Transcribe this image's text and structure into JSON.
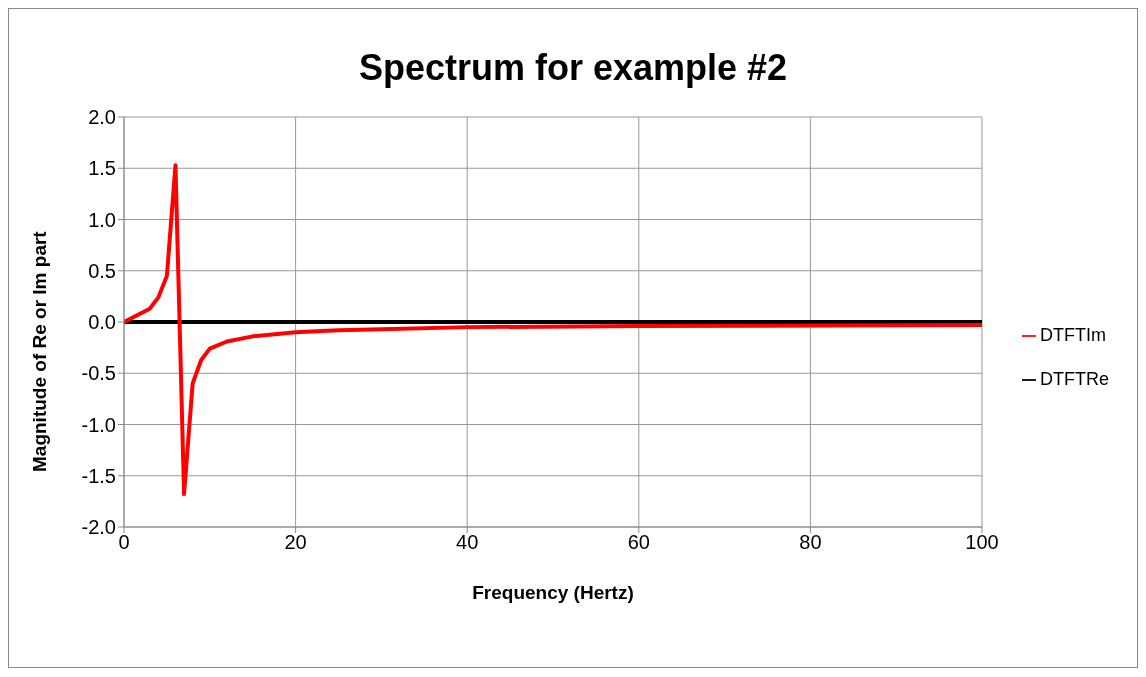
{
  "chart_data": {
    "type": "line",
    "title": "Spectrum for example #2",
    "xlabel": "Frequency (Hertz)",
    "ylabel": "Magnitude of Re or Im part",
    "xlim": [
      0,
      100
    ],
    "xticks": [
      0,
      20,
      40,
      60,
      80,
      100
    ],
    "ylim": [
      -2,
      2
    ],
    "yticks": [
      {
        "value": -2,
        "label": "-2.0"
      },
      {
        "value": -1.5,
        "label": "-1.5"
      },
      {
        "value": -1,
        "label": "-1.0"
      },
      {
        "value": -0.5,
        "label": "-0.5"
      },
      {
        "value": 0,
        "label": "0.0"
      },
      {
        "value": 0.5,
        "label": "0.5"
      },
      {
        "value": 1,
        "label": "1.0"
      },
      {
        "value": 1.5,
        "label": "1.5"
      },
      {
        "value": 2,
        "label": "2.0"
      }
    ],
    "grid": true,
    "legend": "right",
    "marker": "none",
    "line_style": "solid",
    "series": [
      {
        "name": "DTFTRe",
        "color": "#000000",
        "x": [
          0,
          100
        ],
        "values": [
          0,
          0
        ]
      },
      {
        "name": "DTFTIm",
        "color": "#ff0000",
        "x": [
          0,
          3,
          4,
          5,
          6,
          7,
          8,
          9,
          10,
          12,
          15,
          20,
          25,
          30,
          40,
          60,
          100
        ],
        "values": [
          0,
          0.13,
          0.24,
          0.45,
          1.53,
          -1.68,
          -0.6,
          -0.37,
          -0.26,
          -0.19,
          -0.14,
          -0.1,
          -0.08,
          -0.07,
          -0.05,
          -0.04,
          -0.03
        ]
      }
    ]
  }
}
